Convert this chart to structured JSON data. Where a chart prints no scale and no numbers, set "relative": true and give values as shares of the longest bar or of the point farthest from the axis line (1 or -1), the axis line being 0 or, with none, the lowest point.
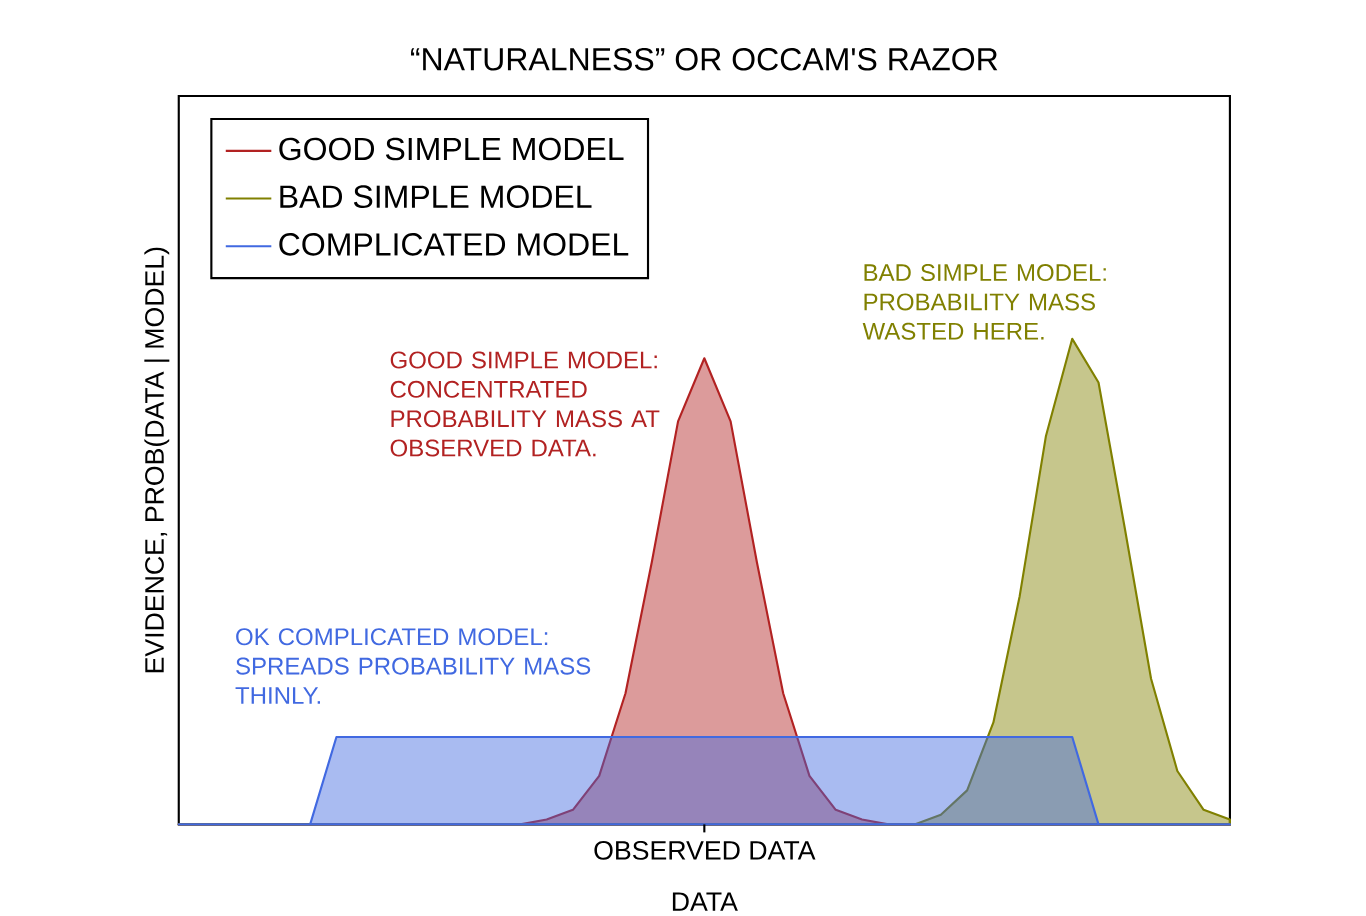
{
  "chart_data": {
    "type": "area",
    "title": "“NATURALNESS” OR OCCAM'S RAZOR",
    "xlabel": "DATA",
    "ylabel": "EVIDENCE, PROB(DATA | MODEL)",
    "relative": true,
    "legend": "top left",
    "categories": [
      null,
      null,
      null,
      null,
      null,
      null,
      null,
      null,
      null,
      null,
      null,
      null,
      null,
      null,
      null,
      null,
      null,
      null,
      null,
      null,
      null,
      null,
      null,
      null,
      null,
      null,
      null,
      null,
      null,
      null,
      null,
      null,
      null,
      null,
      null,
      null,
      null,
      null,
      null,
      null,
      null
    ],
    "series": [
      {
        "name": "GOOD SIMPLE MODEL",
        "color": "#b22222",
        "values": [
          0,
          0,
          0,
          0,
          0,
          0,
          0,
          0,
          0,
          0,
          0,
          0,
          0,
          0,
          0.01,
          0.03,
          0.1,
          0.27,
          0.54,
          0.83,
          0.96,
          0.83,
          0.54,
          0.27,
          0.1,
          0.03,
          0.01,
          0,
          0,
          0,
          0,
          0,
          0,
          0,
          0,
          0,
          0,
          0,
          0,
          0,
          0
        ]
      },
      {
        "name": "BAD SIMPLE MODEL",
        "color": "#808000",
        "values": [
          0,
          0,
          0,
          0,
          0,
          0,
          0,
          0,
          0,
          0,
          0,
          0,
          0,
          0,
          0,
          0,
          0,
          0,
          0,
          0,
          0,
          0,
          0,
          0,
          0,
          0,
          0,
          0,
          0,
          0.02,
          0.07,
          0.21,
          0.47,
          0.8,
          1.0,
          0.91,
          0.61,
          0.3,
          0.11,
          0.03,
          0.01
        ]
      },
      {
        "name": "COMPLICATED MODEL",
        "color": "#4169e1",
        "values": [
          0,
          0,
          0,
          0,
          0,
          0,
          0.18,
          0.18,
          0.18,
          0.18,
          0.18,
          0.18,
          0.18,
          0.18,
          0.18,
          0.18,
          0.18,
          0.18,
          0.18,
          0.18,
          0.18,
          0.18,
          0.18,
          0.18,
          0.18,
          0.18,
          0.18,
          0.18,
          0.18,
          0.18,
          0.18,
          0.18,
          0.18,
          0.18,
          0.18,
          0,
          0,
          0,
          0,
          0,
          0
        ]
      }
    ],
    "annotations": [
      "GOOD SIMPLE MODEL: CONCENTRATED PROBABILITY MASS AT OBSERVED DATA.",
      "BAD SIMPLE MODEL: PROBABILITY MASS WASTED HERE.",
      "OK COMPLICATED MODEL: SPREADS PROBABILITY MASS THINLY.",
      "OBSERVED DATA"
    ]
  }
}
